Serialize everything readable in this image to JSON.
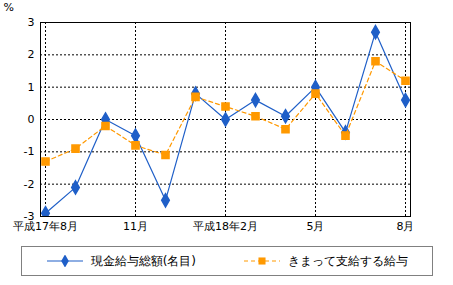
{
  "chart_data": {
    "type": "line",
    "y_label": "%",
    "categories": [
      "平成17年8月",
      null,
      null,
      "11月",
      null,
      null,
      "平成18年2月",
      null,
      null,
      "5月",
      null,
      null,
      "8月"
    ],
    "series": [
      {
        "name": "現金給与総額(名目)",
        "color": "#1f5fc8",
        "marker": "diamond",
        "line_style": "solid",
        "values": [
          -2.9,
          -2.1,
          0.0,
          -0.5,
          -2.5,
          0.8,
          0.0,
          0.6,
          0.1,
          1.0,
          -0.4,
          2.7,
          0.6
        ]
      },
      {
        "name": "きまって支給する給与",
        "color": "#ff9900",
        "marker": "square",
        "line_style": "dashed",
        "values": [
          -1.3,
          -0.9,
          -0.2,
          -0.8,
          -1.1,
          0.7,
          0.4,
          0.1,
          -0.3,
          0.8,
          -0.5,
          1.8,
          1.2
        ]
      }
    ],
    "ylim": [
      -3,
      3
    ],
    "yticks": [
      -3,
      -2,
      -1,
      0,
      1,
      2,
      3
    ],
    "grid": true,
    "legend": "bottom"
  }
}
